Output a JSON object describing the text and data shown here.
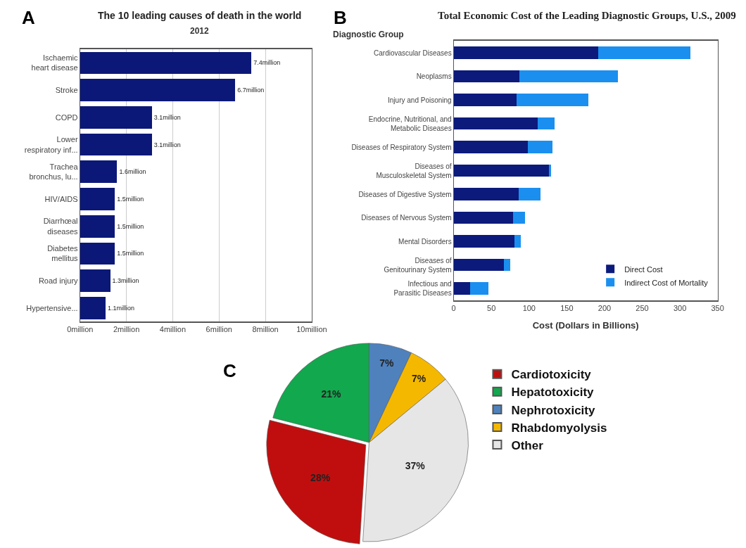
{
  "chart_data": [
    {
      "type": "bar",
      "orientation": "horizontal",
      "title": "The 10 leading causes of death in the world",
      "subtitle": "2012",
      "annotations": [
        "A"
      ],
      "categories": [
        "Ischaemic\nheart disease",
        "Stroke",
        "COPD",
        "Lower\nrespiratory inf...",
        "Trachea\nbronchus, lu...",
        "HIV/AIDS",
        "Diarrhœal\ndiseases",
        "Diabetes\nmellitus",
        "Road injury",
        "Hypertensive..."
      ],
      "values": [
        7.4,
        6.7,
        3.1,
        3.1,
        1.6,
        1.5,
        1.5,
        1.5,
        1.3,
        1.1
      ],
      "value_labels": [
        "7.4million",
        "6.7million",
        "3.1million",
        "3.1million",
        "1.6million",
        "1.5million",
        "1.5million",
        "1.5million",
        "1.3million",
        "1.1million"
      ],
      "color": "#0c1878",
      "xlim": [
        0,
        10
      ],
      "xticks": [
        {
          "value": 0,
          "label": "0million"
        },
        {
          "value": 2,
          "label": "2million"
        },
        {
          "value": 4,
          "label": "4million"
        },
        {
          "value": 6,
          "label": "6million"
        },
        {
          "value": 8,
          "label": "8million"
        },
        {
          "value": 10,
          "label": "10million"
        }
      ],
      "grid": "x",
      "legend": false
    },
    {
      "type": "bar",
      "orientation": "horizontal",
      "stacked": true,
      "title": "Total Economic Cost of the Leading Diagnostic Groups, U.S., 2009",
      "ylabel": "Diagnostic Group",
      "xlabel": "Cost (Dollars in Billions)",
      "annotations": [
        "B"
      ],
      "categories": [
        "Cardiovascular Diseases",
        "Neoplasms",
        "Injury and Poisoning",
        "Endocrine, Nutritional, and\nMetabolic Diseases",
        "Diseases of Respiratory System",
        "Diseases of\nMusculoskeletal System",
        "Diseases of Digestive System",
        "Diseases of Nervous System",
        "Mental Disorders",
        "Diseases of\nGenitourinary System",
        "Infectious and\nParasitic Diseases"
      ],
      "series": [
        {
          "name": "Direct Cost",
          "color": "#0c1a7c",
          "values": [
            192,
            87,
            83,
            111,
            98,
            126,
            86,
            79,
            81,
            67,
            22
          ]
        },
        {
          "name": "Indirect Cost of Mortality",
          "color": "#1a8ff0",
          "values": [
            122,
            131,
            96,
            23,
            33,
            3,
            29,
            16,
            8,
            8,
            24
          ]
        }
      ],
      "xlim": [
        0,
        350
      ],
      "xticks": [
        0,
        50,
        100,
        150,
        200,
        250,
        300,
        350
      ],
      "grid": false,
      "legend": "bottom right"
    },
    {
      "type": "pie",
      "annotations": [
        "C"
      ],
      "categories": [
        "Cardiotoxicity",
        "Hepatotoxicity",
        "Nephrotoxicity",
        "Rhabdomyolysis",
        "Other"
      ],
      "values": [
        28,
        21,
        7,
        7,
        37
      ],
      "colors": [
        "#c00e0e",
        "#12a84e",
        "#4f81bd",
        "#f5b800",
        "#e6e6e6"
      ],
      "value_labels": [
        "28%",
        "21%",
        "7%",
        "7%",
        "37%"
      ],
      "legend": "right"
    }
  ]
}
